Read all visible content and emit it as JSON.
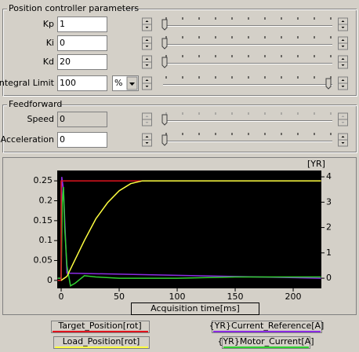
{
  "position_group": {
    "title": "Position controller parameters",
    "rows": [
      {
        "label": "Kp",
        "value": "1"
      },
      {
        "label": "Ki",
        "value": "0"
      },
      {
        "label": "Kd",
        "value": "20"
      },
      {
        "label": "Integral Limit",
        "value": "100",
        "unit": "%"
      }
    ]
  },
  "feedforward_group": {
    "title": "Feedforward",
    "rows": [
      {
        "label": "Speed",
        "value": "0"
      },
      {
        "label": "Acceleration",
        "value": "0"
      }
    ]
  },
  "chart": {
    "type": "line",
    "x_label": "Acquisition time[ms]",
    "y2_label": "[YR]",
    "xlim": [
      -3.4,
      224.3
    ],
    "ylim": [
      -0.02,
      0.276
    ],
    "y2lim": [
      -0.4,
      4.25
    ],
    "xticks": [
      0,
      50,
      100,
      150,
      200
    ],
    "yticks": [
      0,
      0.05,
      0.1,
      0.15,
      0.2,
      0.25
    ],
    "y2ticks": [
      0,
      1,
      2,
      3,
      4
    ],
    "series": [
      {
        "name": "Target_Position[rot]",
        "color": "#e0141e",
        "x": [
          -3,
          0,
          0,
          224
        ],
        "values": [
          0,
          0,
          0.25,
          0.25
        ]
      },
      {
        "name": "{YR}Current_Reference[A]",
        "color": "#8a2be2",
        "axis": "y2",
        "x": [
          -3,
          0,
          0.5,
          2,
          5,
          224
        ],
        "values": [
          0,
          0,
          4,
          3.5,
          0.2,
          0
        ]
      },
      {
        "name": "Load_Position[rot]",
        "color": "#ffff40",
        "x": [
          0,
          5,
          10,
          20,
          30,
          40,
          50,
          60,
          70,
          224
        ],
        "values": [
          0,
          0.01,
          0.04,
          0.1,
          0.155,
          0.195,
          0.225,
          0.243,
          0.25,
          0.25
        ]
      },
      {
        "name": "{YR}Motor_Current[A]",
        "color": "#30d030",
        "axis": "y2",
        "x": [
          -3,
          0,
          1,
          2,
          3,
          5,
          8,
          12,
          20,
          30,
          50,
          100,
          150,
          200,
          224
        ],
        "values": [
          0,
          0,
          3.0,
          3.6,
          2.0,
          0.5,
          -0.3,
          -0.2,
          0.1,
          0.05,
          0,
          0,
          0.05,
          0.05,
          0.05
        ]
      }
    ]
  }
}
